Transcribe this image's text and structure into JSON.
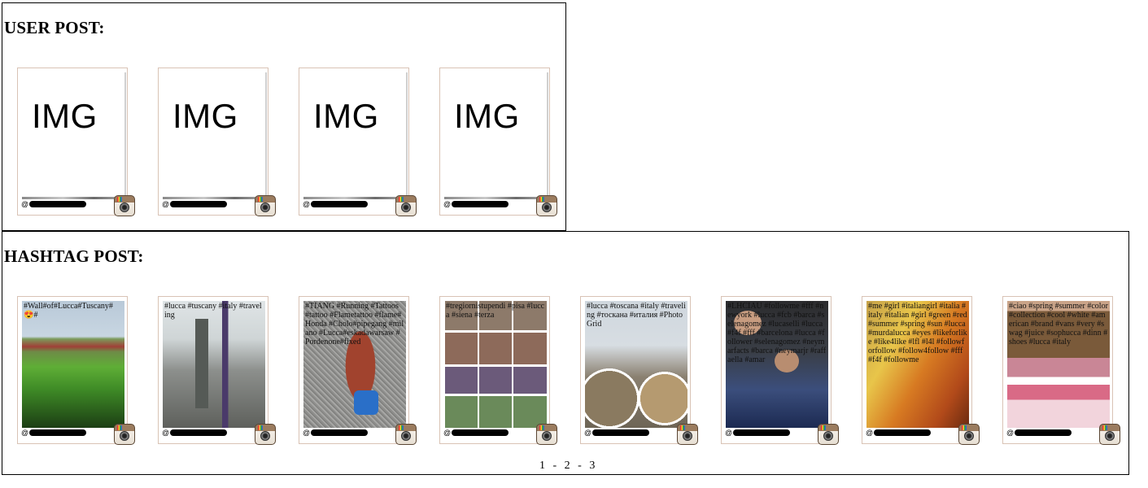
{
  "user_section": {
    "title": "USER POST:",
    "posts": [
      {
        "placeholder": "IMG",
        "username_prefix": "@"
      },
      {
        "placeholder": "IMG",
        "username_prefix": "@"
      },
      {
        "placeholder": "IMG",
        "username_prefix": "@"
      },
      {
        "placeholder": "IMG",
        "username_prefix": "@"
      }
    ]
  },
  "hashtag_section": {
    "title": "HASHTAG POST:",
    "posts": [
      {
        "caption": "#Wall#of#Lucca#Tuscany#😍#",
        "username_prefix": "@"
      },
      {
        "caption": "#lucca #tuscany #italy #traveling",
        "username_prefix": "@"
      },
      {
        "caption": "#TIANG #Running #Tattoos #tattoo #Flametattoo #flame#Honda #Cholo#pipegang #milano #Lucca#eskadawarsaw #Pordenone#fixed",
        "username_prefix": "@"
      },
      {
        "caption": "#tregiornistupendi #pisa #lucca #siena #terza",
        "username_prefix": "@"
      },
      {
        "caption": "#lucca #toscana #italy #traveling #тоскана #италия #PhotoGrid",
        "username_prefix": "@"
      },
      {
        "caption": "#LHCIAU #followme #fff #newyork #lucca #fcb #barca #selenagomez #lucaselli #lucca #f4f #fff #barcelona #lucca #follower #selenagomez #neymarfacts #barca #neymarjr #raffaella #amar",
        "username_prefix": "@"
      },
      {
        "caption": "#me #girl #italiangirl #italia #italy #italian #girl #green #red #summer #spring #sun #lucca #murdalucca #eyes #likeforlike #like4like #lfl #l4l #followforfollow #follow4follow #fff #f4f #followme",
        "username_prefix": "@"
      },
      {
        "caption": "#ciao #spring #summer #color #collection #cool #white #american #brand #vans #very #swag #juice #sophucca #dinn #shoes #lucca #italy",
        "username_prefix": "@"
      }
    ]
  },
  "pagination": {
    "pages": [
      "1",
      "2",
      "3"
    ],
    "separator": "-"
  },
  "icons": {
    "card_icon": "instagram-camera-icon"
  }
}
